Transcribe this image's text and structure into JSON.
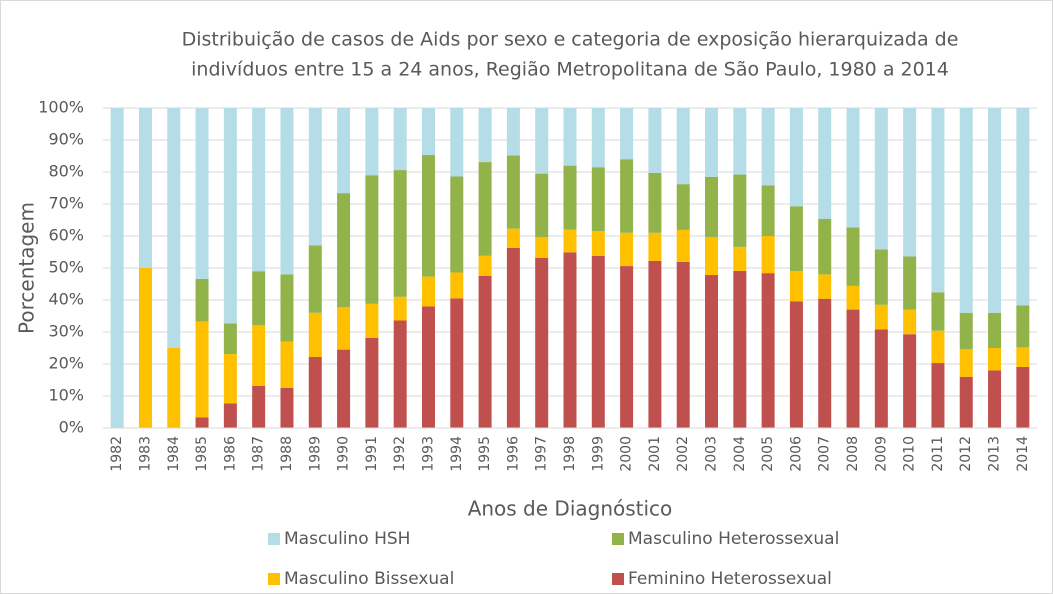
{
  "chart_data": {
    "type": "stacked_bar",
    "title": [
      "Distribuição de casos de Aids por sexo e categoria de exposição hierarquizada de",
      "indivíduos entre 15 a 24 anos, Região Metropolitana de São Paulo, 1980 a 2014"
    ],
    "x_label": "Anos de Diagnóstico",
    "y_label": "Porcentagem",
    "categories": [
      "1982",
      "1983",
      "1984",
      "1985",
      "1986",
      "1987",
      "1988",
      "1989",
      "1990",
      "1991",
      "1992",
      "1993",
      "1994",
      "1995",
      "1996",
      "1997",
      "1998",
      "1999",
      "2000",
      "2001",
      "2002",
      "2003",
      "2004",
      "2005",
      "2006",
      "2007",
      "2008",
      "2009",
      "2010",
      "2011",
      "2012",
      "2013",
      "2014"
    ],
    "series": [
      {
        "name": "Feminino Heterossexual",
        "color": "#c0504d",
        "values": [
          0,
          0,
          0,
          3.3,
          7.7,
          13.2,
          12.5,
          22.2,
          24.5,
          28.2,
          33.6,
          38,
          40.5,
          47.5,
          56.3,
          53.2,
          54.9,
          53.8,
          50.6,
          52.2,
          51.9,
          47.8,
          49.1,
          48.4,
          39.6,
          40.4,
          37,
          30.8,
          29.3,
          20.3,
          16,
          18,
          19.1
        ]
      },
      {
        "name": "Masculino Bissexual",
        "color": "#ffc000",
        "values": [
          0,
          50,
          25,
          30,
          15.4,
          18.9,
          14.5,
          13.8,
          13.2,
          10.6,
          7.4,
          9.3,
          8.1,
          6.3,
          6,
          6.4,
          7.1,
          7.7,
          10.4,
          8.8,
          10,
          11.9,
          7.5,
          11.6,
          9.4,
          7.6,
          7.4,
          7.7,
          7.7,
          10.1,
          8.6,
          7,
          6.1
        ]
      },
      {
        "name": "Masculino Heterossexual",
        "color": "#92b24a",
        "values": [
          0,
          0,
          0,
          13.3,
          9.6,
          16.9,
          21,
          21.1,
          35.7,
          40.2,
          39.6,
          38,
          30,
          29.3,
          22.9,
          19.9,
          20,
          20,
          23,
          18.7,
          14.3,
          18.8,
          22.6,
          15.8,
          20.3,
          17.4,
          18.3,
          17.3,
          16.6,
          12,
          11.4,
          11,
          13.1
        ]
      },
      {
        "name": "Masculino HSH",
        "color": "#b4dde7",
        "values": [
          100,
          50,
          75,
          53.3,
          67.3,
          51,
          52,
          42.9,
          26.6,
          21,
          19.4,
          14.7,
          21.4,
          16.9,
          14.8,
          20.5,
          18,
          18.5,
          16,
          20.3,
          23.8,
          21.5,
          20.8,
          24.2,
          30.7,
          34.6,
          37.3,
          44.2,
          46.4,
          57.6,
          64,
          64,
          61.7
        ]
      }
    ],
    "legend_order": [
      3,
      2,
      1,
      0
    ],
    "ylim": [
      0,
      100
    ],
    "yticks": [
      {
        "value": 0,
        "label": "0%"
      },
      {
        "value": 10,
        "label": "10%"
      },
      {
        "value": 20,
        "label": "20%"
      },
      {
        "value": 30,
        "label": "30%"
      },
      {
        "value": 40,
        "label": "40%"
      },
      {
        "value": 50,
        "label": "50%"
      },
      {
        "value": 60,
        "label": "60%"
      },
      {
        "value": 70,
        "label": "70%"
      },
      {
        "value": 80,
        "label": "80%"
      },
      {
        "value": 90,
        "label": "90%"
      },
      {
        "value": 100,
        "label": "100%"
      }
    ]
  }
}
